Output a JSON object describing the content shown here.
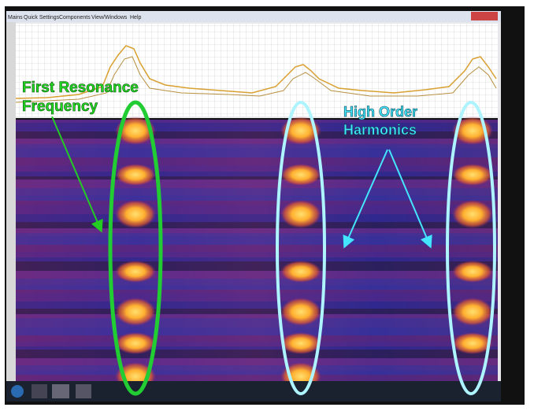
{
  "menu": {
    "items": [
      "Mains",
      "Quick Settings",
      "Components",
      "View/Windows",
      "Help"
    ]
  },
  "annotations": {
    "first_resonance": [
      "First Resonance",
      "Frequency"
    ],
    "harmonics": [
      "High Order",
      "Harmonics"
    ]
  }
}
